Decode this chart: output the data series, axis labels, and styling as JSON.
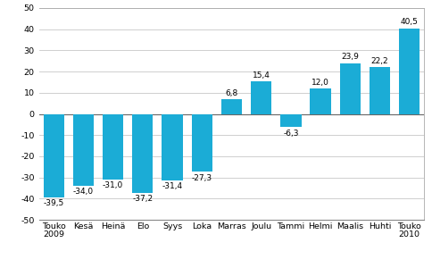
{
  "categories": [
    "Touko\n2009",
    "Kesä",
    "Heinä",
    "Elo",
    "Syys",
    "Loka",
    "Marras",
    "Joulu",
    "Tammi",
    "Helmi",
    "Maalis",
    "Huhti",
    "Touko\n2010"
  ],
  "values": [
    -39.5,
    -34.0,
    -31.0,
    -37.2,
    -31.4,
    -27.3,
    6.8,
    15.4,
    -6.3,
    12.0,
    23.9,
    22.2,
    40.5
  ],
  "bar_color": "#1BACD6",
  "ylim": [
    -50,
    50
  ],
  "yticks": [
    -50,
    -40,
    -30,
    -20,
    -10,
    0,
    10,
    20,
    30,
    40,
    50
  ],
  "label_fontsize": 6.5,
  "tick_fontsize": 6.8,
  "background_color": "#ffffff",
  "grid_color": "#c8c8c8"
}
